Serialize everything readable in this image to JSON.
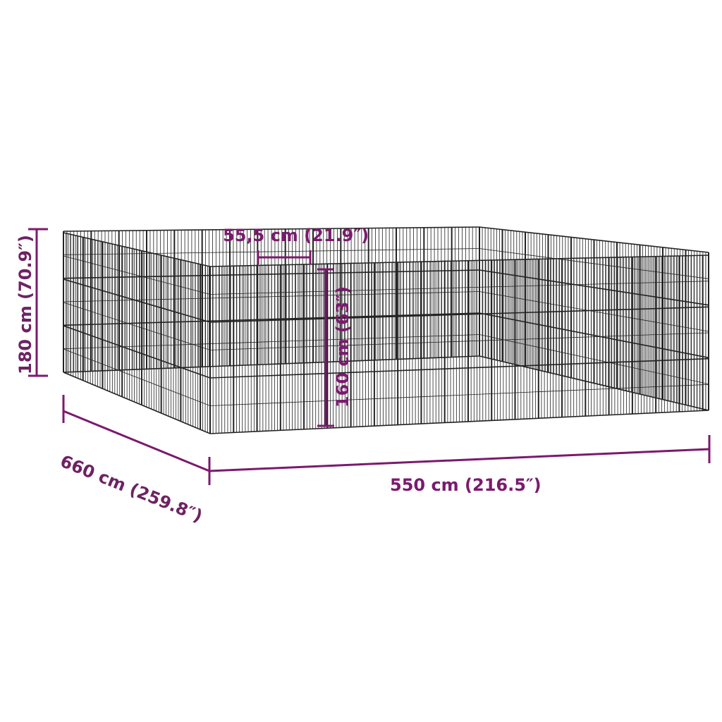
{
  "colors": {
    "dimension": "#7b1a6e",
    "label": "#6e2263",
    "frame": "#222222"
  },
  "dimensions": {
    "height_total": "180 cm (70.9″)",
    "depth": "660 cm (259.8″)",
    "width": "550 cm (216.5″)",
    "door_width": "55,5 cm (21.9″)",
    "door_height": "160 cm (63″)"
  }
}
